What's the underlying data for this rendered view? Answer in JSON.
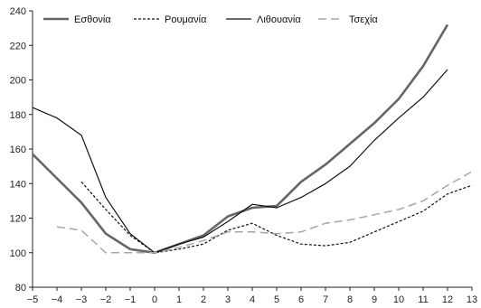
{
  "chart_data": {
    "type": "line",
    "x": [
      -5,
      -4,
      -3,
      -2,
      -1,
      0,
      1,
      2,
      3,
      4,
      5,
      6,
      7,
      8,
      9,
      10,
      11,
      12,
      13
    ],
    "xlim": [
      -5,
      13
    ],
    "ylim": [
      80,
      240
    ],
    "yticks": [
      80,
      100,
      120,
      140,
      160,
      180,
      200,
      220,
      240
    ],
    "xticks": [
      "−5",
      "−4",
      "−3",
      "−2",
      "−1",
      "0",
      "1",
      "2",
      "3",
      "4",
      "5",
      "6",
      "7",
      "8",
      "9",
      "10",
      "11",
      "12",
      "13"
    ],
    "grid": false,
    "legend_position": "top",
    "series": [
      {
        "name": "Εσθονία",
        "style": "thick-solid",
        "color": "#666666",
        "points": [
          [
            -5,
            157
          ],
          [
            -4,
            143
          ],
          [
            -3,
            129
          ],
          [
            -2,
            111
          ],
          [
            -1,
            102
          ],
          [
            0,
            100
          ],
          [
            1,
            105
          ],
          [
            2,
            110
          ],
          [
            3,
            121
          ],
          [
            4,
            126
          ],
          [
            5,
            127
          ],
          [
            6,
            141
          ],
          [
            7,
            151
          ],
          [
            8,
            163
          ],
          [
            9,
            175
          ],
          [
            10,
            189
          ],
          [
            11,
            208
          ],
          [
            12,
            232
          ]
        ]
      },
      {
        "name": "Ρουμανία",
        "style": "dotted",
        "color": "#111111",
        "points": [
          [
            -3,
            141
          ],
          [
            -2,
            125
          ],
          [
            -1,
            110
          ],
          [
            0,
            100
          ],
          [
            1,
            102
          ],
          [
            2,
            105
          ],
          [
            3,
            113
          ],
          [
            4,
            117
          ],
          [
            5,
            110
          ],
          [
            6,
            105
          ],
          [
            7,
            104
          ],
          [
            8,
            106
          ],
          [
            9,
            112
          ],
          [
            10,
            118
          ],
          [
            11,
            124
          ],
          [
            12,
            134
          ],
          [
            13,
            139
          ]
        ]
      },
      {
        "name": "Λιθουανία",
        "style": "solid",
        "color": "#111111",
        "points": [
          [
            -5,
            184
          ],
          [
            -4,
            178
          ],
          [
            -3,
            168
          ],
          [
            -2,
            132
          ],
          [
            -1,
            111
          ],
          [
            0,
            100
          ],
          [
            1,
            105
          ],
          [
            2,
            109
          ],
          [
            3,
            118
          ],
          [
            4,
            128
          ],
          [
            5,
            126
          ],
          [
            6,
            132
          ],
          [
            7,
            140
          ],
          [
            8,
            150
          ],
          [
            9,
            165
          ],
          [
            10,
            178
          ],
          [
            11,
            190
          ],
          [
            12,
            206
          ]
        ]
      },
      {
        "name": "Τσεχία",
        "style": "dashed",
        "color": "#a6a6a6",
        "points": [
          [
            -4,
            115
          ],
          [
            -3,
            113
          ],
          [
            -2,
            100
          ],
          [
            -1,
            100
          ],
          [
            0,
            100
          ],
          [
            1,
            103
          ],
          [
            2,
            107
          ],
          [
            3,
            112
          ],
          [
            4,
            112
          ],
          [
            5,
            111
          ],
          [
            6,
            112
          ],
          [
            7,
            117
          ],
          [
            8,
            119
          ],
          [
            9,
            122
          ],
          [
            10,
            125
          ],
          [
            11,
            130
          ],
          [
            12,
            139
          ],
          [
            13,
            147
          ]
        ]
      }
    ]
  }
}
